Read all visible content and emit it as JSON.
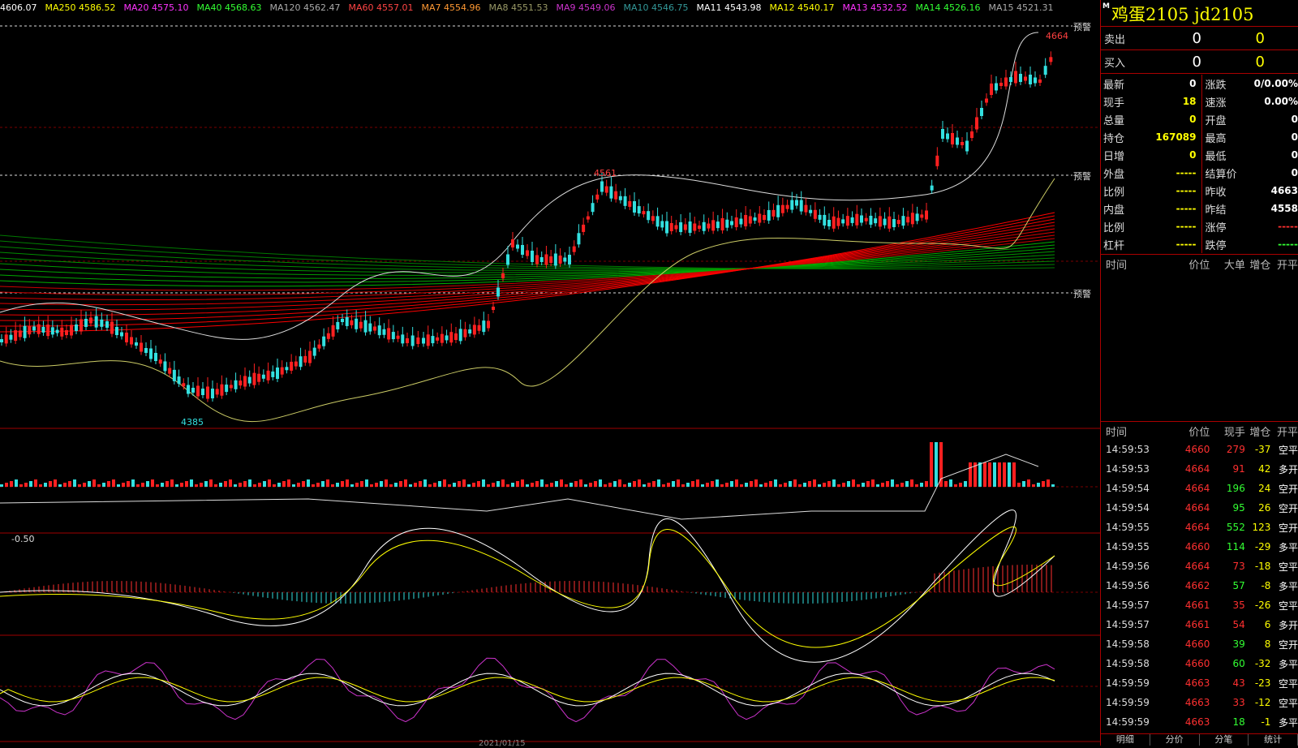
{
  "ma_legend": [
    {
      "label": "",
      "value": "4606.07",
      "color": "#ffffff"
    },
    {
      "label": "MA250",
      "value": "4586.52",
      "color": "#ffff00"
    },
    {
      "label": "MA20",
      "value": "4575.10",
      "color": "#ff33ff"
    },
    {
      "label": "MA40",
      "value": "4568.63",
      "color": "#33ff33"
    },
    {
      "label": "MA120",
      "value": "4562.47",
      "color": "#aaaaaa"
    },
    {
      "label": "MA60",
      "value": "4557.01",
      "color": "#ff4444"
    },
    {
      "label": "MA7",
      "value": "4554.96",
      "color": "#ff9933"
    },
    {
      "label": "MA8",
      "value": "4551.53",
      "color": "#999966"
    },
    {
      "label": "MA9",
      "value": "4549.06",
      "color": "#cc33cc"
    },
    {
      "label": "MA10",
      "value": "4546.75",
      "color": "#339999"
    },
    {
      "label": "MA11",
      "value": "4543.98",
      "color": "#ffffff"
    },
    {
      "label": "MA12",
      "value": "4540.17",
      "color": "#ffff00"
    },
    {
      "label": "MA13",
      "value": "4532.52",
      "color": "#ff33ff"
    },
    {
      "label": "MA14",
      "value": "4526.16",
      "color": "#33ff33"
    },
    {
      "label": "MA15",
      "value": "4521.31",
      "color": "#aaaaaa"
    }
  ],
  "chart": {
    "high_label": "4664",
    "peak_label": "4561",
    "low_label": "4385",
    "warn_label": "预警",
    "macd_label": "-0.50",
    "date_label": "2021/01/15"
  },
  "panel": {
    "marker": "M",
    "title": "鸡蛋2105  jd2105",
    "sell": {
      "label": "卖出",
      "price": "0",
      "qty": "0"
    },
    "buy": {
      "label": "买入",
      "price": "0",
      "qty": "0"
    },
    "quote": [
      {
        "a": "最新",
        "av": "0",
        "avc": "#ffffff",
        "b": "涨跌",
        "bv": "0/0.00%",
        "bvc": "#ffffff"
      },
      {
        "a": "现手",
        "av": "18",
        "avc": "#ffff00",
        "b": "速涨",
        "bv": "0.00%",
        "bvc": "#ffffff"
      },
      {
        "a": "总量",
        "av": "0",
        "avc": "#ffff00",
        "b": "开盘",
        "bv": "0",
        "bvc": "#ffffff"
      },
      {
        "a": "持仓",
        "av": "167089",
        "avc": "#ffff00",
        "b": "最高",
        "bv": "0",
        "bvc": "#ffffff"
      },
      {
        "a": "日增",
        "av": "0",
        "avc": "#ffff00",
        "b": "最低",
        "bv": "0",
        "bvc": "#ffffff"
      },
      {
        "a": "外盘",
        "av": "-----",
        "avc": "#ffff00",
        "b": "结算价",
        "bv": "0",
        "bvc": "#ffffff"
      },
      {
        "a": "比例",
        "av": "-----",
        "avc": "#ffff00",
        "b": "昨收",
        "bv": "4663",
        "bvc": "#ffffff"
      },
      {
        "a": "内盘",
        "av": "-----",
        "avc": "#ffff00",
        "b": "昨结",
        "bv": "4558",
        "bvc": "#ffffff"
      },
      {
        "a": "比例",
        "av": "-----",
        "avc": "#ffff00",
        "b": "涨停",
        "bv": "-----",
        "bvc": "#ff3030"
      },
      {
        "a": "杠杆",
        "av": "-----",
        "avc": "#ffff00",
        "b": "跌停",
        "bv": "-----",
        "bvc": "#33ff33"
      }
    ],
    "big_header": [
      "时间",
      "价位",
      "大单",
      "增仓",
      "开平"
    ],
    "tick_header": [
      "时间",
      "价位",
      "现手",
      "增仓",
      "开平"
    ],
    "ticks": [
      {
        "t": "14:59:53",
        "p": "4660",
        "v": "279",
        "vc": "#ff3030",
        "d": "-37",
        "k": "空平"
      },
      {
        "t": "14:59:53",
        "p": "4664",
        "v": "91",
        "vc": "#ff3030",
        "d": "42",
        "k": "多开"
      },
      {
        "t": "14:59:54",
        "p": "4664",
        "v": "196",
        "vc": "#33ff33",
        "d": "24",
        "k": "空开"
      },
      {
        "t": "14:59:54",
        "p": "4664",
        "v": "95",
        "vc": "#33ff33",
        "d": "26",
        "k": "空开"
      },
      {
        "t": "14:59:55",
        "p": "4664",
        "v": "552",
        "vc": "#33ff33",
        "d": "123",
        "k": "空开"
      },
      {
        "t": "14:59:55",
        "p": "4660",
        "v": "114",
        "vc": "#33ff33",
        "d": "-29",
        "k": "多平"
      },
      {
        "t": "14:59:56",
        "p": "4664",
        "v": "73",
        "vc": "#ff3030",
        "d": "-18",
        "k": "空平"
      },
      {
        "t": "14:59:56",
        "p": "4662",
        "v": "57",
        "vc": "#33ff33",
        "d": "-8",
        "k": "多平"
      },
      {
        "t": "14:59:57",
        "p": "4661",
        "v": "35",
        "vc": "#ff3030",
        "d": "-26",
        "k": "空平"
      },
      {
        "t": "14:59:57",
        "p": "4661",
        "v": "54",
        "vc": "#ff3030",
        "d": "6",
        "k": "多开"
      },
      {
        "t": "14:59:58",
        "p": "4660",
        "v": "39",
        "vc": "#33ff33",
        "d": "8",
        "k": "空开"
      },
      {
        "t": "14:59:58",
        "p": "4660",
        "v": "60",
        "vc": "#33ff33",
        "d": "-32",
        "k": "多平"
      },
      {
        "t": "14:59:59",
        "p": "4663",
        "v": "43",
        "vc": "#ff3030",
        "d": "-23",
        "k": "空平"
      },
      {
        "t": "14:59:59",
        "p": "4663",
        "v": "33",
        "vc": "#ff3030",
        "d": "-12",
        "k": "空平"
      },
      {
        "t": "14:59:59",
        "p": "4663",
        "v": "18",
        "vc": "#33ff33",
        "d": "-1",
        "k": "多平"
      }
    ],
    "tabs": [
      "明细",
      "分价",
      "分笔",
      "统计"
    ]
  },
  "colors": {
    "up": "#ff2020",
    "down": "#33e0e0",
    "grid": "#a00000"
  }
}
